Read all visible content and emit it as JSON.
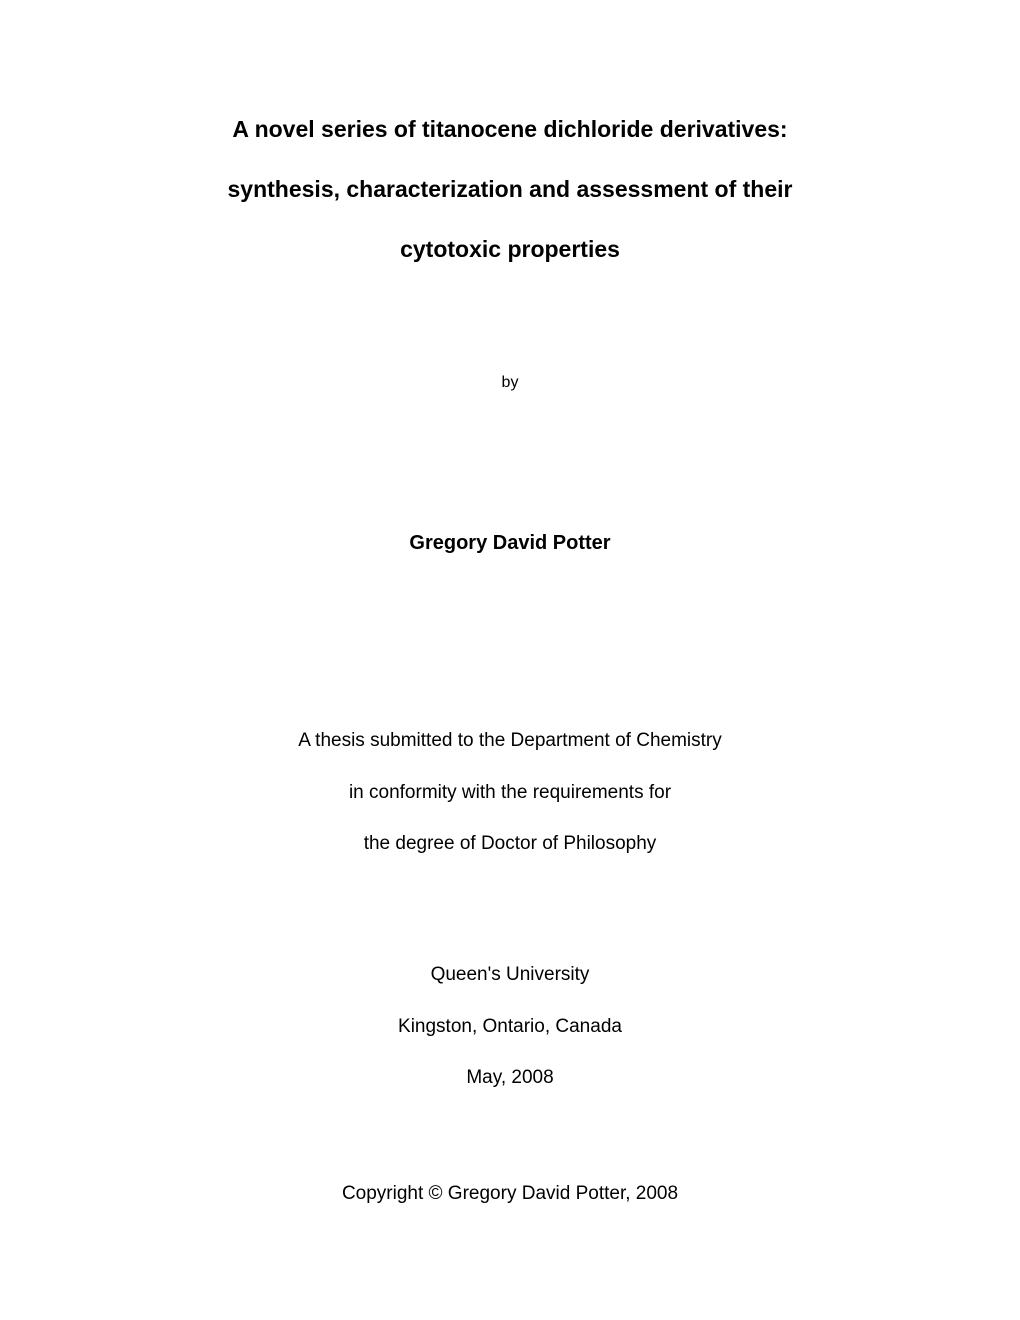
{
  "title": {
    "line1": "A novel series of titanocene dichloride derivatives:",
    "line2": "synthesis, characterization and assessment of their",
    "line3": "cytotoxic properties"
  },
  "by": "by",
  "author": "Gregory David Potter",
  "statement": {
    "line1": "A thesis submitted to the Department of Chemistry",
    "line2": "in conformity with the requirements for",
    "line3": "the degree of Doctor of Philosophy"
  },
  "institution": {
    "line1": "Queen's University",
    "line2": "Kingston, Ontario, Canada",
    "line3": "May, 2008"
  },
  "copyright": "Copyright © Gregory David Potter, 2008"
}
